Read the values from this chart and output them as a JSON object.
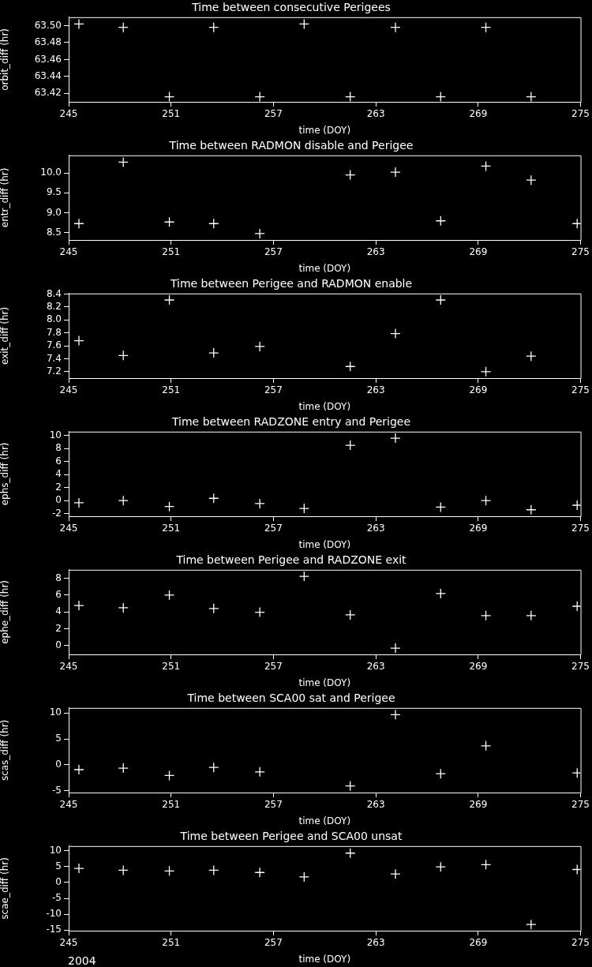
{
  "chart_data": [
    {
      "type": "scatter",
      "title": "Time between consecutive Perigees",
      "xlabel": "time (DOY)",
      "ylabel": "orbit_diff (hr)",
      "marker": "cross",
      "grid": false,
      "legend": false,
      "xlim": [
        245,
        275
      ],
      "xticks": [
        245,
        251,
        257,
        263,
        269,
        275
      ],
      "ylim": [
        63.41,
        63.51
      ],
      "yticks": [
        63.42,
        63.44,
        63.46,
        63.48,
        {
          "value": 63.5,
          "label": "63.50"
        }
      ],
      "series": [
        {
          "color": "#ffffff",
          "x": [
            245.6,
            248.2,
            250.9,
            253.5,
            256.2,
            258.8,
            261.5,
            264.15,
            266.8,
            269.45,
            272.1
          ],
          "values": [
            63.502,
            63.498,
            63.416,
            63.498,
            63.416,
            63.502,
            63.416,
            63.498,
            63.416,
            63.498,
            63.416
          ]
        }
      ]
    },
    {
      "type": "scatter",
      "title": "Time between RADMON disable and Perigee",
      "xlabel": "time (DOY)",
      "ylabel": "entr_diff (hr)",
      "marker": "cross",
      "grid": false,
      "legend": false,
      "xlim": [
        245,
        275
      ],
      "xticks": [
        245,
        251,
        257,
        263,
        269,
        275
      ],
      "ylim": [
        8.32,
        10.44
      ],
      "yticks": [
        8.5,
        {
          "value": 9,
          "label": "9.0"
        },
        9.5,
        {
          "value": 10,
          "label": "10.0"
        }
      ],
      "series": [
        {
          "color": "#ffffff",
          "x": [
            245.6,
            248.2,
            250.9,
            253.5,
            256.2,
            261.5,
            264.15,
            266.8,
            269.45,
            272.1,
            274.8
          ],
          "values": [
            8.73,
            10.27,
            8.77,
            8.73,
            8.48,
            9.95,
            10.02,
            8.8,
            10.17,
            9.82,
            8.73
          ]
        }
      ]
    },
    {
      "type": "scatter",
      "title": "Time between Perigee and RADMON enable",
      "xlabel": "time (DOY)",
      "ylabel": "exit_diff (hr)",
      "marker": "cross",
      "grid": false,
      "legend": false,
      "xlim": [
        245,
        275
      ],
      "xticks": [
        245,
        251,
        257,
        263,
        269,
        275
      ],
      "ylim": [
        7.1,
        8.41
      ],
      "yticks": [
        7.2,
        7.4,
        7.6,
        7.8,
        {
          "value": 8,
          "label": "8.0"
        },
        8.2,
        8.4
      ],
      "series": [
        {
          "color": "#ffffff",
          "x": [
            245.6,
            248.2,
            250.9,
            253.5,
            256.2,
            261.5,
            264.15,
            266.8,
            269.45,
            272.1
          ],
          "values": [
            7.68,
            7.45,
            8.31,
            7.49,
            7.59,
            7.28,
            7.79,
            8.31,
            7.2,
            7.44
          ]
        }
      ]
    },
    {
      "type": "scatter",
      "title": "Time between RADZONE entry and Perigee",
      "xlabel": "time (DOY)",
      "ylabel": "ephs_diff (hr)",
      "marker": "cross",
      "grid": false,
      "legend": false,
      "xlim": [
        245,
        275
      ],
      "xticks": [
        245,
        251,
        257,
        263,
        269,
        275
      ],
      "ylim": [
        -2.4,
        10.6
      ],
      "yticks": [
        -2,
        0,
        2,
        4,
        6,
        8,
        10
      ],
      "series": [
        {
          "color": "#ffffff",
          "x": [
            245.6,
            248.2,
            250.9,
            253.5,
            256.2,
            258.8,
            261.5,
            264.15,
            266.8,
            269.45,
            272.1,
            274.8
          ],
          "values": [
            -0.33,
            0,
            -0.9,
            0.36,
            -0.45,
            -1.2,
            8.5,
            9.6,
            -1,
            0,
            -1.4,
            -0.7
          ]
        }
      ]
    },
    {
      "type": "scatter",
      "title": "Time between Perigee and RADZONE exit",
      "xlabel": "time (DOY)",
      "ylabel": "ephe_diff (hr)",
      "marker": "cross",
      "grid": false,
      "legend": false,
      "xlim": [
        245,
        275
      ],
      "xticks": [
        245,
        251,
        257,
        263,
        269,
        275
      ],
      "ylim": [
        -1.05,
        9
      ],
      "yticks": [
        0,
        2,
        4,
        6,
        8
      ],
      "series": [
        {
          "color": "#ffffff",
          "x": [
            245.6,
            248.2,
            250.9,
            253.5,
            256.2,
            258.8,
            261.5,
            264.15,
            266.8,
            269.45,
            272.1,
            274.8
          ],
          "values": [
            4.76,
            4.49,
            6,
            4.4,
            3.96,
            8.22,
            3.64,
            -0.31,
            6.18,
            3.56,
            3.56,
            4.67
          ]
        }
      ]
    },
    {
      "type": "scatter",
      "title": "Time between SCA00 sat and Perigee",
      "xlabel": "time (DOY)",
      "ylabel": "scas_diff (hr)",
      "marker": "cross",
      "grid": false,
      "legend": false,
      "xlim": [
        245,
        275
      ],
      "xticks": [
        245,
        251,
        257,
        263,
        269,
        275
      ],
      "ylim": [
        -5.4,
        11
      ],
      "yticks": [
        -5,
        0,
        5,
        10
      ],
      "series": [
        {
          "color": "#ffffff",
          "x": [
            245.6,
            248.2,
            250.9,
            253.5,
            256.2,
            261.5,
            264.15,
            266.8,
            269.45,
            274.8
          ],
          "values": [
            -0.96,
            -0.67,
            -2.1,
            -0.53,
            -1.39,
            -4.13,
            9.7,
            -1.75,
            3.65,
            -1.6
          ]
        }
      ]
    },
    {
      "type": "scatter",
      "title": "Time between Perigee and SCA00 unsat",
      "xlabel": "time (DOY)",
      "ylabel": "scae_diff (hr)",
      "marker": "cross",
      "grid": false,
      "legend": false,
      "xlim": [
        245,
        275
      ],
      "xticks": [
        245,
        251,
        257,
        263,
        269,
        275
      ],
      "ylim": [
        -15.2,
        11.5
      ],
      "yticks": [
        -15,
        -10,
        -5,
        0,
        5,
        10
      ],
      "annotations": [
        "2004"
      ],
      "series": [
        {
          "color": "#ffffff",
          "x": [
            245.6,
            248.2,
            250.9,
            253.5,
            256.2,
            258.8,
            261.5,
            264.15,
            266.8,
            269.45,
            272.1,
            274.8
          ],
          "values": [
            4.46,
            3.87,
            3.64,
            3.87,
            3.17,
            1.76,
            9.27,
            2.7,
            4.93,
            5.63,
            -13.26,
            4.1
          ]
        }
      ]
    }
  ]
}
